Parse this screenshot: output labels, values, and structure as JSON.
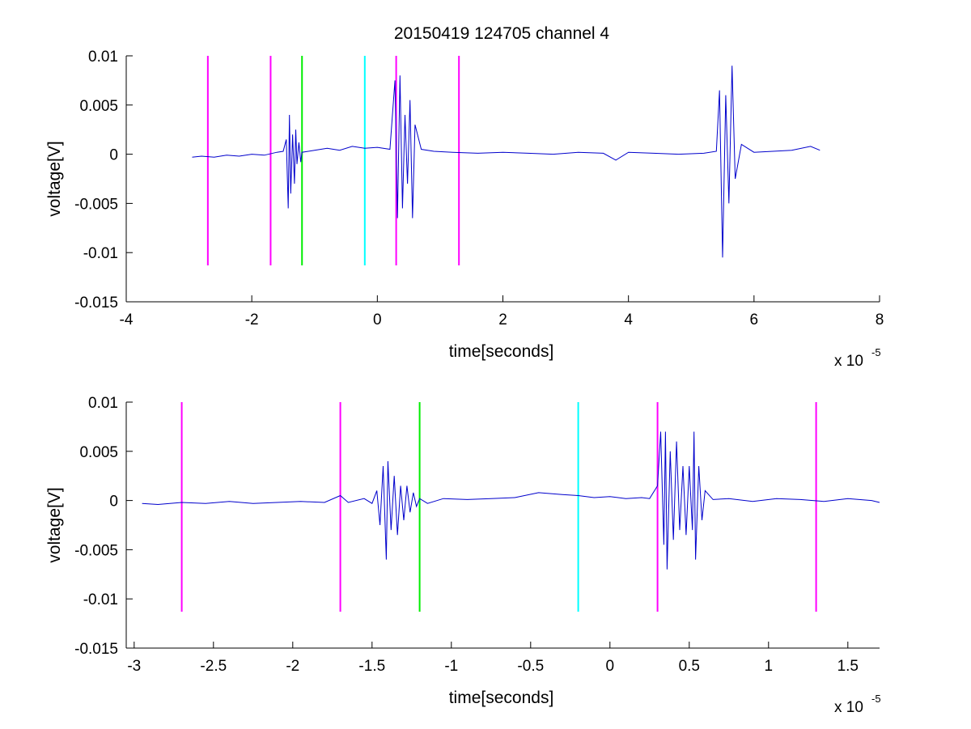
{
  "title": "20150419 124705 channel 4",
  "colors": {
    "signal": "#0000cc",
    "marker_magenta": "#ff00ff",
    "marker_green": "#00ee00",
    "marker_cyan": "#00ffff",
    "axis": "#000000"
  },
  "chart_data": [
    {
      "type": "line",
      "title": "20150419 124705 channel 4",
      "xlabel": "time[seconds]",
      "ylabel": "voltage[V]",
      "x_exponent_label": "x 10",
      "x_exponent_power": "-5",
      "xlim": [
        -4,
        8
      ],
      "ylim": [
        -0.015,
        0.01
      ],
      "x_scale_note": "x values in units of 1e-5 s",
      "xticks": [
        -4,
        -2,
        0,
        2,
        4,
        6,
        8
      ],
      "xtick_labels": [
        "-4",
        "-2",
        "0",
        "2",
        "4",
        "6",
        "8"
      ],
      "yticks": [
        -0.015,
        -0.01,
        -0.005,
        0,
        0.005,
        0.01
      ],
      "ytick_labels": [
        "-0.015",
        "-0.01",
        "-0.005",
        "0",
        "0.005",
        "0.01"
      ],
      "grid": false,
      "series": [
        {
          "x": [
            -2.95,
            -2.8,
            -2.6,
            -2.4,
            -2.2,
            -2.0,
            -1.8,
            -1.6,
            -1.5,
            -1.45,
            -1.42,
            -1.4,
            -1.38,
            -1.35,
            -1.32,
            -1.3,
            -1.28,
            -1.25,
            -1.22,
            -1.2,
            -1.1,
            -1.0,
            -0.8,
            -0.6,
            -0.4,
            -0.2,
            0.0,
            0.2,
            0.28,
            0.32,
            0.36,
            0.4,
            0.44,
            0.48,
            0.52,
            0.56,
            0.6,
            0.7,
            0.9,
            1.2,
            1.6,
            2.0,
            2.4,
            2.8,
            3.2,
            3.6,
            3.8,
            4.0,
            4.4,
            4.8,
            5.2,
            5.4,
            5.45,
            5.5,
            5.55,
            5.6,
            5.65,
            5.7,
            5.8,
            6.0,
            6.3,
            6.6,
            6.9,
            7.05
          ],
          "y": [
            -0.0003,
            -0.0002,
            -0.0003,
            -0.0001,
            -0.0002,
            0.0,
            -0.0001,
            0.0002,
            0.0003,
            0.0015,
            -0.0055,
            0.004,
            -0.004,
            0.002,
            -0.003,
            0.0025,
            -0.001,
            0.0012,
            -0.0008,
            0.0002,
            0.0003,
            0.0004,
            0.0006,
            0.0004,
            0.0008,
            0.0006,
            0.0007,
            0.0005,
            0.0075,
            -0.0065,
            0.008,
            -0.0055,
            0.004,
            -0.003,
            0.0055,
            -0.0065,
            0.003,
            0.0005,
            0.0003,
            0.0002,
            0.0001,
            0.0002,
            0.0001,
            0.0,
            0.0002,
            0.0001,
            -0.0006,
            0.0002,
            0.0001,
            0.0,
            0.0001,
            0.0003,
            0.0065,
            -0.0105,
            0.006,
            -0.005,
            0.009,
            -0.0025,
            0.001,
            0.0002,
            0.0003,
            0.0004,
            0.0008,
            0.0004
          ],
          "color": "#0000cc"
        }
      ],
      "markers": [
        {
          "x": -2.7,
          "color": "#ff00ff"
        },
        {
          "x": -1.7,
          "color": "#ff00ff"
        },
        {
          "x": -1.2,
          "color": "#00ee00"
        },
        {
          "x": -0.2,
          "color": "#00ffff"
        },
        {
          "x": 0.3,
          "color": "#ff00ff"
        },
        {
          "x": 1.3,
          "color": "#ff00ff"
        }
      ],
      "marker_yrange": [
        -0.0113,
        0.01
      ]
    },
    {
      "type": "line",
      "xlabel": "time[seconds]",
      "ylabel": "voltage[V]",
      "x_exponent_label": "x 10",
      "x_exponent_power": "-5",
      "xlim": [
        -3.05,
        1.7
      ],
      "ylim": [
        -0.015,
        0.01
      ],
      "x_scale_note": "x values in units of 1e-5 s",
      "xticks": [
        -3,
        -2.5,
        -2,
        -1.5,
        -1,
        -0.5,
        0,
        0.5,
        1,
        1.5
      ],
      "xtick_labels": [
        "-3",
        "-2.5",
        "-2",
        "-1.5",
        "-1",
        "-0.5",
        "0",
        "0.5",
        "1",
        "1.5"
      ],
      "yticks": [
        -0.015,
        -0.01,
        -0.005,
        0,
        0.005,
        0.01
      ],
      "ytick_labels": [
        "-0.015",
        "-0.01",
        "-0.005",
        "0",
        "0.005",
        "0.01"
      ],
      "grid": false,
      "series": [
        {
          "x": [
            -2.95,
            -2.85,
            -2.7,
            -2.55,
            -2.4,
            -2.25,
            -2.1,
            -1.95,
            -1.8,
            -1.7,
            -1.65,
            -1.55,
            -1.5,
            -1.47,
            -1.45,
            -1.43,
            -1.41,
            -1.4,
            -1.38,
            -1.36,
            -1.34,
            -1.32,
            -1.3,
            -1.28,
            -1.26,
            -1.24,
            -1.22,
            -1.2,
            -1.15,
            -1.05,
            -0.9,
            -0.75,
            -0.6,
            -0.45,
            -0.3,
            -0.2,
            -0.1,
            0.0,
            0.1,
            0.2,
            0.25,
            0.3,
            0.32,
            0.34,
            0.35,
            0.36,
            0.38,
            0.4,
            0.42,
            0.44,
            0.46,
            0.48,
            0.5,
            0.52,
            0.53,
            0.54,
            0.56,
            0.58,
            0.6,
            0.65,
            0.75,
            0.9,
            1.05,
            1.2,
            1.35,
            1.5,
            1.65,
            1.7
          ],
          "y": [
            -0.0003,
            -0.0004,
            -0.0002,
            -0.0003,
            -0.0001,
            -0.0003,
            -0.0002,
            -0.0001,
            -0.0002,
            0.0005,
            -0.0002,
            0.0002,
            -0.0003,
            0.001,
            -0.0025,
            0.0035,
            -0.006,
            0.004,
            -0.003,
            0.0025,
            -0.0035,
            0.0015,
            -0.002,
            0.0015,
            -0.0012,
            0.0008,
            -0.0006,
            0.0002,
            -0.0003,
            0.0002,
            0.0001,
            0.0002,
            0.0003,
            0.0008,
            0.0006,
            0.0005,
            0.0003,
            0.0004,
            0.0002,
            0.0003,
            0.0002,
            0.0015,
            0.007,
            -0.0045,
            0.007,
            -0.007,
            0.005,
            -0.004,
            0.006,
            -0.003,
            0.0035,
            -0.0035,
            0.0035,
            -0.003,
            0.007,
            -0.006,
            0.0035,
            -0.002,
            0.001,
            0.0001,
            0.0002,
            -0.0001,
            0.0002,
            0.0001,
            -0.0001,
            0.0002,
            0.0,
            -0.0002
          ],
          "color": "#0000cc"
        }
      ],
      "markers": [
        {
          "x": -2.7,
          "color": "#ff00ff"
        },
        {
          "x": -1.7,
          "color": "#ff00ff"
        },
        {
          "x": -1.2,
          "color": "#00ee00"
        },
        {
          "x": -0.2,
          "color": "#00ffff"
        },
        {
          "x": 0.3,
          "color": "#ff00ff"
        },
        {
          "x": 1.3,
          "color": "#ff00ff"
        }
      ],
      "marker_yrange": [
        -0.0113,
        0.01
      ]
    }
  ]
}
